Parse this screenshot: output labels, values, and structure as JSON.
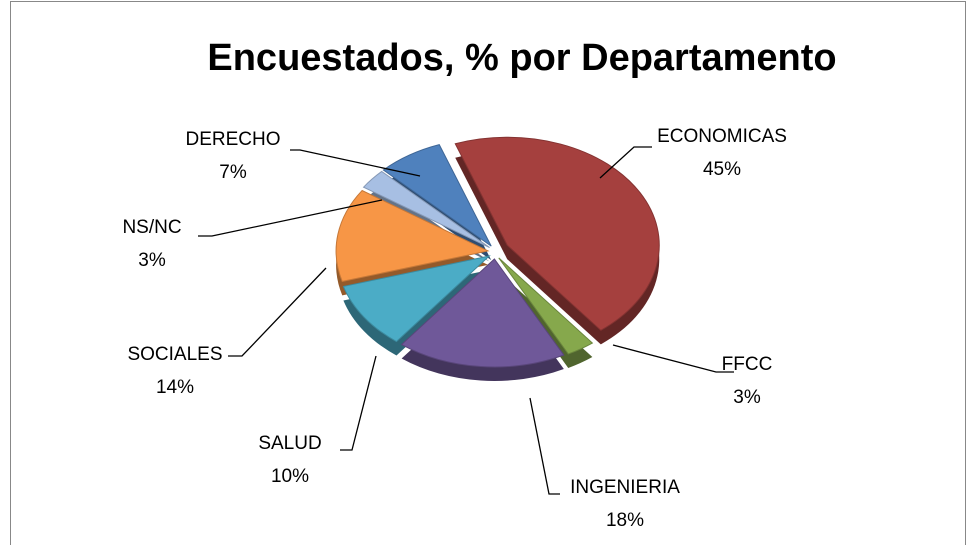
{
  "chart_data": {
    "type": "pie",
    "title": "Encuestados, % por Departamento",
    "categories": [
      "ECONOMICAS",
      "FFCC",
      "INGENIERIA",
      "SALUD",
      "SOCIALES",
      "NS/NC",
      "DERECHO"
    ],
    "values": [
      45,
      3,
      18,
      10,
      14,
      3,
      7
    ],
    "value_labels": [
      "45%",
      "3%",
      "18%",
      "10%",
      "14%",
      "3%",
      "7%"
    ],
    "colors": [
      "#a5403e",
      "#86a84c",
      "#6f5899",
      "#4bacc6",
      "#f79646",
      "#a7bfe3",
      "#4f81bd"
    ]
  }
}
